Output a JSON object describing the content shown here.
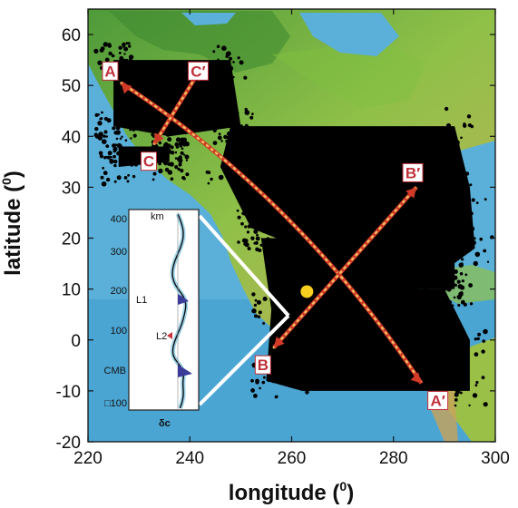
{
  "axes": {
    "xlabel": "longitude (",
    "xlabel_sup": "0",
    "ylabel": "latitude (",
    "ylabel_sup": "0",
    "label_close": ")",
    "xlim": [
      220,
      300
    ],
    "ylim": [
      -20,
      65
    ],
    "xticks": [
      "220",
      "240",
      "260",
      "280",
      "300"
    ],
    "yticks": [
      "-20",
      "-10",
      "0",
      "10",
      "20",
      "30",
      "40",
      "50",
      "60"
    ]
  },
  "profiles": [
    {
      "start_label": "A",
      "end_label": "A′",
      "start": [
        226.5,
        50.5
      ],
      "end": [
        285.5,
        -8.5
      ],
      "curve": "arc"
    },
    {
      "start_label": "B",
      "end_label": "B′",
      "start": [
        256.5,
        -1.5
      ],
      "end": [
        284.5,
        30.0
      ],
      "curve": "straight"
    },
    {
      "start_label": "C",
      "end_label": "C′",
      "start": [
        233.0,
        38.5
      ],
      "end": [
        242.0,
        53.0
      ],
      "curve": "straight"
    }
  ],
  "highlight_point": {
    "lon": 263.0,
    "lat": 9.5,
    "color": "#f8d020"
  },
  "colors": {
    "profile": "#d23a28",
    "path_dots": "#f0c060",
    "label": "#c0303a",
    "ocean": "#5ab0d8",
    "data": "#000000"
  },
  "inset": {
    "depth_unit": "km",
    "depth_ticks": [
      "400",
      "300",
      "200",
      "100",
      "CMB",
      "□100"
    ],
    "layer_labels": [
      "L1",
      "L2"
    ],
    "xlabel": "δc"
  }
}
